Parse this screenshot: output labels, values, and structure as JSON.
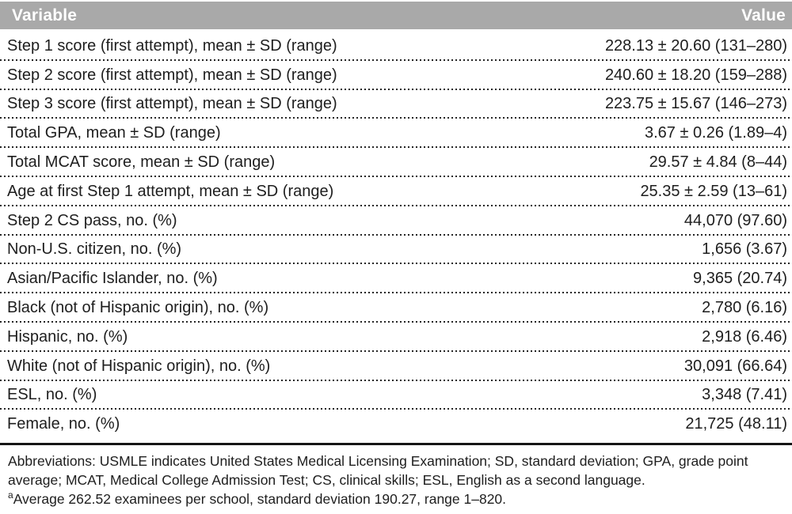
{
  "table": {
    "columns": {
      "variable": "Variable",
      "value": "Value"
    },
    "rows": [
      {
        "variable": "Step 1 score (first attempt), mean ± SD (range)",
        "value": "228.13 ± 20.60 (131–280)"
      },
      {
        "variable": "Step 2 score (first attempt), mean ± SD (range)",
        "value": "240.60 ± 18.20 (159–288)"
      },
      {
        "variable": "Step 3 score (first attempt), mean ± SD (range)",
        "value": "223.75 ± 15.67 (146–273)"
      },
      {
        "variable": "Total GPA, mean ± SD (range)",
        "value": "3.67 ± 0.26 (1.89–4)"
      },
      {
        "variable": "Total MCAT score, mean ± SD (range)",
        "value": "29.57 ± 4.84 (8–44)"
      },
      {
        "variable": "Age at first Step 1 attempt, mean ± SD (range)",
        "value": "25.35 ± 2.59 (13–61)"
      },
      {
        "variable": "Step 2 CS pass, no. (%)",
        "value": "44,070 (97.60)"
      },
      {
        "variable": "Non-U.S. citizen, no. (%)",
        "value": "1,656 (3.67)"
      },
      {
        "variable": "Asian/Pacific Islander, no. (%)",
        "value": "9,365 (20.74)"
      },
      {
        "variable": "Black (not of Hispanic origin), no. (%)",
        "value": "2,780 (6.16)"
      },
      {
        "variable": "Hispanic, no. (%)",
        "value": "2,918 (6.46)"
      },
      {
        "variable": "White (not of Hispanic origin), no. (%)",
        "value": "30,091 (66.64)"
      },
      {
        "variable": "ESL, no. (%)",
        "value": "3,348 (7.41)"
      },
      {
        "variable": "Female, no. (%)",
        "value": "21,725 (48.11)"
      }
    ]
  },
  "footnotes": {
    "abbreviations": "Abbreviations: USMLE indicates United States Medical Licensing Examination; SD, standard deviation; GPA, grade point average; MCAT, Medical College Admission Test; CS, clinical skills; ESL, English as a second language.",
    "note_marker": "a",
    "note_text": "Average 262.52 examinees per school, standard deviation 190.27, range 1–820."
  },
  "colors": {
    "header_bg": "#a9a9a9",
    "header_text": "#ffffff",
    "body_text": "#1e1e1e"
  }
}
